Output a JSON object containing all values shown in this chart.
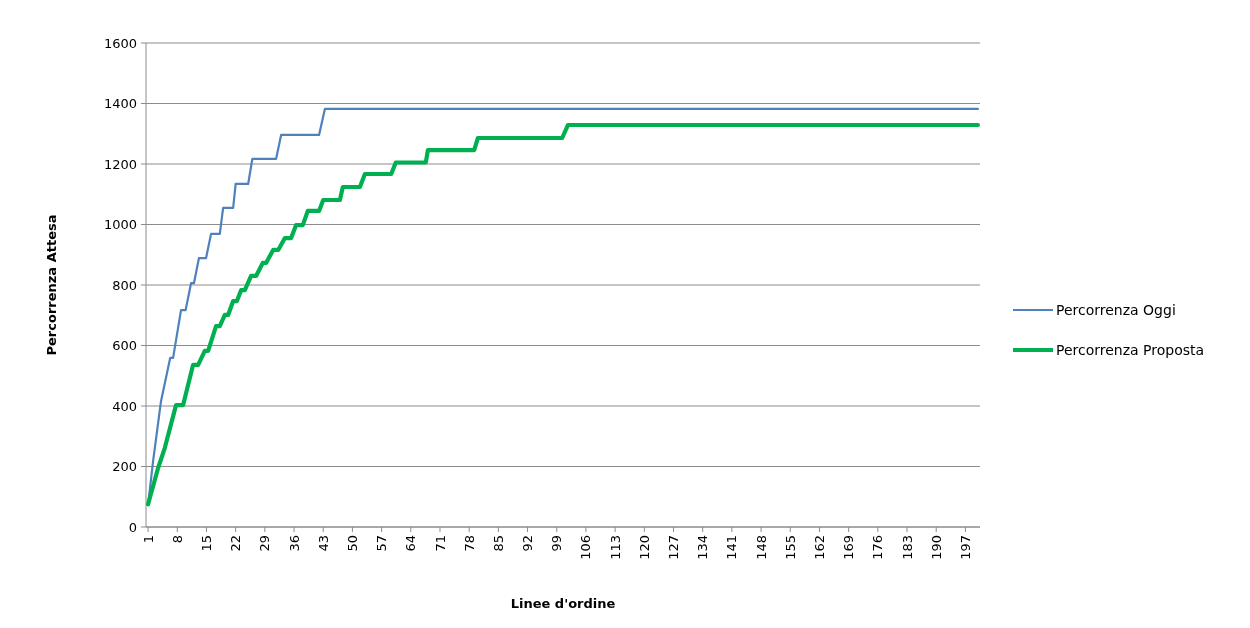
{
  "chart_data": {
    "type": "line",
    "xlabel": "Linee d'ordine",
    "ylabel": "Percorrenza Attesa",
    "xlim": [
      0.5,
      200.5
    ],
    "xticks": [
      1,
      8,
      15,
      22,
      29,
      36,
      43,
      50,
      57,
      64,
      71,
      78,
      85,
      92,
      99,
      106,
      113,
      120,
      127,
      134,
      141,
      148,
      155,
      162,
      169,
      176,
      183,
      190,
      197
    ],
    "ylim": [
      0,
      1600
    ],
    "yticks": [
      0,
      200,
      400,
      600,
      800,
      1000,
      1200,
      1400,
      1600
    ],
    "grid": "y",
    "legend": "right",
    "line_style": "solid",
    "marker": "none",
    "series": [
      {
        "name": "Percorrenza Oggi",
        "color": "#4f81bd",
        "x": [
          1,
          2.2,
          4.1,
          6.3,
          7,
          8.9,
          10,
          11.3,
          12,
          13.2,
          14.9,
          16.1,
          18.2,
          19,
          21.4,
          22,
          25,
          26,
          31.7,
          32.9,
          42,
          43.4,
          200
        ],
        "values": [
          73,
          218,
          416,
          559,
          559,
          717,
          717,
          806,
          806,
          889,
          889,
          969,
          969,
          1055,
          1055,
          1134,
          1134,
          1217,
          1217,
          1296,
          1296,
          1382,
          1382
        ]
      },
      {
        "name": "Percorrenza Proposta",
        "color": "#00b050",
        "x": [
          1,
          3.4,
          5,
          7.7,
          9.4,
          11.8,
          13,
          14.6,
          15.4,
          17.3,
          18.2,
          19.4,
          20.2,
          21.4,
          22.3,
          23.3,
          24.2,
          25.7,
          26.9,
          28.5,
          29.3,
          31,
          32.2,
          33.8,
          35.3,
          36.5,
          38.1,
          39.3,
          42,
          43,
          47,
          47.7,
          51.8,
          53,
          59.3,
          60.4,
          67.6,
          68.1,
          79.2,
          80.1,
          100.3,
          101.7,
          200
        ],
        "values": [
          75,
          195,
          261,
          403,
          403,
          536,
          536,
          582,
          582,
          664,
          664,
          701,
          701,
          747,
          747,
          783,
          783,
          830,
          830,
          873,
          873,
          916,
          916,
          955,
          955,
          998,
          998,
          1045,
          1045,
          1081,
          1081,
          1124,
          1124,
          1167,
          1167,
          1205,
          1205,
          1246,
          1246,
          1286,
          1286,
          1329,
          1329
        ]
      }
    ]
  }
}
